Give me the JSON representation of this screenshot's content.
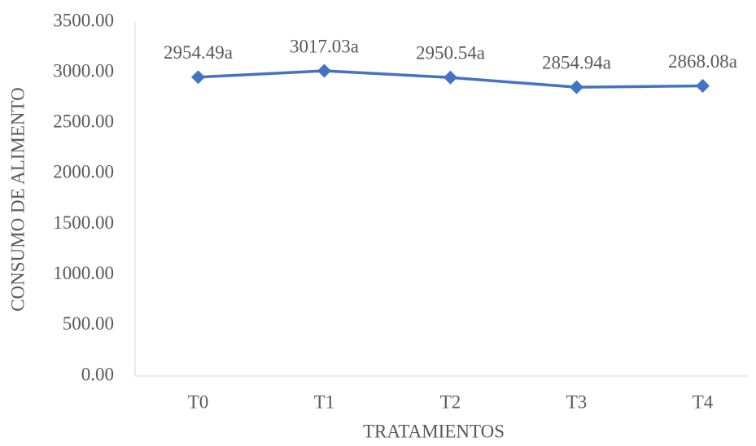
{
  "chart_data": {
    "type": "line",
    "x_label": "TRATAMIENTOS",
    "y_label": "CONSUMO DE ALIMENTO",
    "categories": [
      "T0",
      "T1",
      "T2",
      "T3",
      "T4"
    ],
    "series": [
      {
        "name": "CONSUMO DE ALIMENTO",
        "color": "#4472c4",
        "values": [
          2954.49,
          3017.03,
          2950.54,
          2854.94,
          2868.08
        ],
        "value_labels": [
          "2954.49a",
          "3017.03a",
          "2950.54a",
          "2854.94a",
          "2868.08a"
        ]
      }
    ],
    "ylim": [
      0,
      3500
    ],
    "yticks": [
      {
        "value": 0,
        "label": "0.00"
      },
      {
        "value": 500,
        "label": "500.00"
      },
      {
        "value": 1000,
        "label": "1000.00"
      },
      {
        "value": 1500,
        "label": "1500.00"
      },
      {
        "value": 2000,
        "label": "2000.00"
      },
      {
        "value": 2500,
        "label": "2500.00"
      },
      {
        "value": 3000,
        "label": "3000.00"
      },
      {
        "value": 3500,
        "label": "3500.00"
      }
    ],
    "grid": false
  }
}
